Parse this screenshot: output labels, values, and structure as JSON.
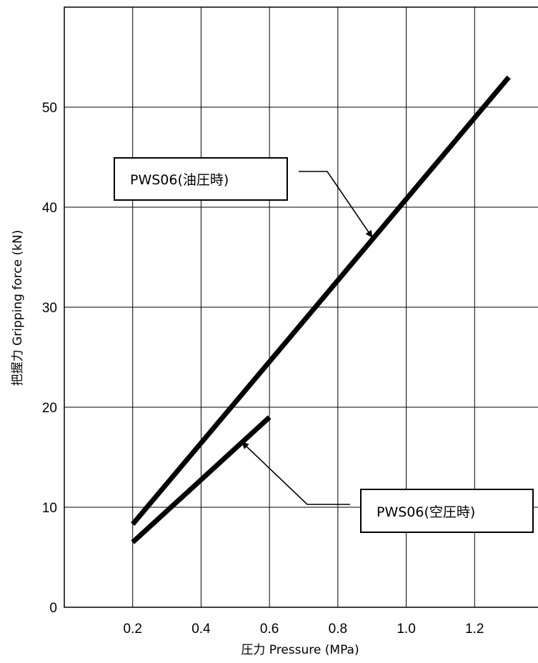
{
  "chart_data": {
    "type": "line",
    "xlabel": "圧力 Pressure (MPa)",
    "ylabel": "把握力 Gripping force (kN)",
    "xlim": [
      0.0,
      1.4
    ],
    "ylim": [
      0,
      60
    ],
    "x_ticks": [
      0.2,
      0.4,
      0.6,
      0.8,
      1.0,
      1.2
    ],
    "x_tick_labels": [
      "0.2",
      "0.4",
      "0.6",
      "0.8",
      "1.0",
      "1.2"
    ],
    "y_ticks": [
      0,
      10,
      20,
      30,
      40,
      50
    ],
    "y_tick_labels": [
      "0",
      "10",
      "20",
      "30",
      "40",
      "50"
    ],
    "grid": true,
    "series": [
      {
        "name": "PWS06(油圧時)",
        "x": [
          0.2,
          1.3
        ],
        "y": [
          8.3,
          53.0
        ],
        "color": "#000000"
      },
      {
        "name": "PWS06(空圧時)",
        "x": [
          0.2,
          0.6
        ],
        "y": [
          6.5,
          19.0
        ],
        "color": "#000000"
      }
    ],
    "annotations": [
      {
        "text": "PWS06(油圧時)",
        "target": [
          0.9,
          37.0
        ]
      },
      {
        "text": "PWS06(空圧時)",
        "target": [
          0.52,
          16.5
        ]
      }
    ]
  }
}
